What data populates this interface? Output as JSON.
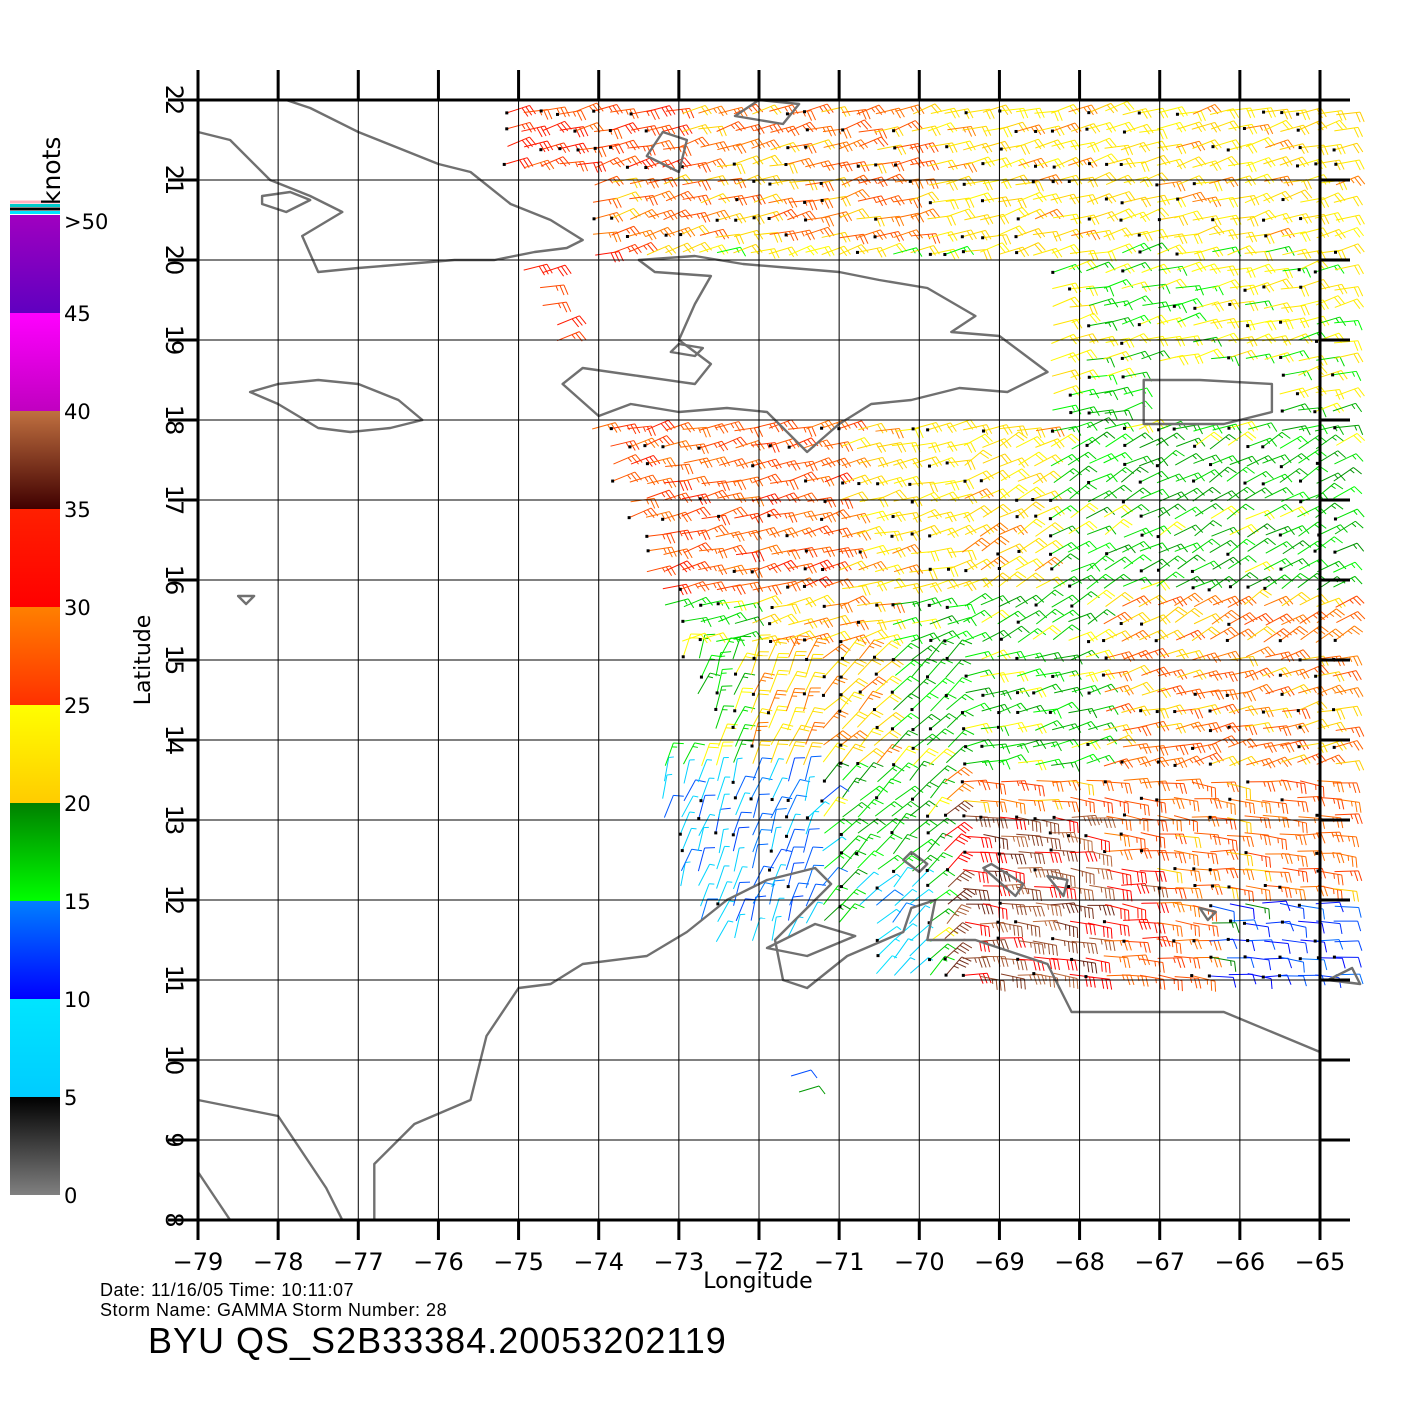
{
  "colorbar": {
    "unit_label": "knots",
    "overflow_label": ">50",
    "bins": [
      {
        "label": "0",
        "from": 0,
        "to": 5,
        "top": "#000000",
        "bottom": "#808080"
      },
      {
        "label": "5",
        "from": 5,
        "to": 10,
        "top": "#00e5ff",
        "bottom": "#00ccff"
      },
      {
        "label": "10",
        "from": 10,
        "to": 15,
        "top": "#0080ff",
        "bottom": "#0000ff"
      },
      {
        "label": "15",
        "from": 15,
        "to": 20,
        "top": "#008000",
        "bottom": "#00ff00"
      },
      {
        "label": "20",
        "from": 20,
        "to": 25,
        "top": "#ffff00",
        "bottom": "#ffcc00"
      },
      {
        "label": "25",
        "from": 25,
        "to": 30,
        "top": "#ff8000",
        "bottom": "#ff3000"
      },
      {
        "label": "30",
        "from": 30,
        "to": 35,
        "top": "#ff2000",
        "bottom": "#ff0000"
      },
      {
        "label": "35",
        "from": 35,
        "to": 40,
        "top": "#c07040",
        "bottom": "#400000"
      },
      {
        "label": "40",
        "from": 40,
        "to": 45,
        "top": "#ff00ff",
        "bottom": "#c000c0"
      },
      {
        "label": "45",
        "from": 45,
        "to": 50,
        "top": "#a000c0",
        "bottom": "#6000c0"
      }
    ],
    "top_stripes": [
      "#00e5ff",
      "#000000",
      "#00cccc",
      "#ffb0c0"
    ]
  },
  "map": {
    "lon_range": [
      -79,
      -65
    ],
    "lat_range": [
      8,
      22
    ],
    "x_ticks": [
      "−79",
      "−78",
      "−77",
      "−76",
      "−75",
      "−74",
      "−73",
      "−72",
      "−71",
      "−70",
      "−69",
      "−68",
      "−67",
      "−66",
      "−65"
    ],
    "y_ticks": [
      "8",
      "9",
      "10",
      "11",
      "12",
      "13",
      "14",
      "15",
      "16",
      "17",
      "18",
      "19",
      "20",
      "21",
      "22"
    ],
    "xlabel": "Longitude",
    "ylabel": "Latitude",
    "coast_color": "#707070"
  },
  "footer": {
    "date_line": "Date: 11/16/05   Time: 10:11:07",
    "storm_line": "Storm Name: GAMMA   Storm Number: 28",
    "title": "BYU QS_S2B33384.20053202119"
  }
}
